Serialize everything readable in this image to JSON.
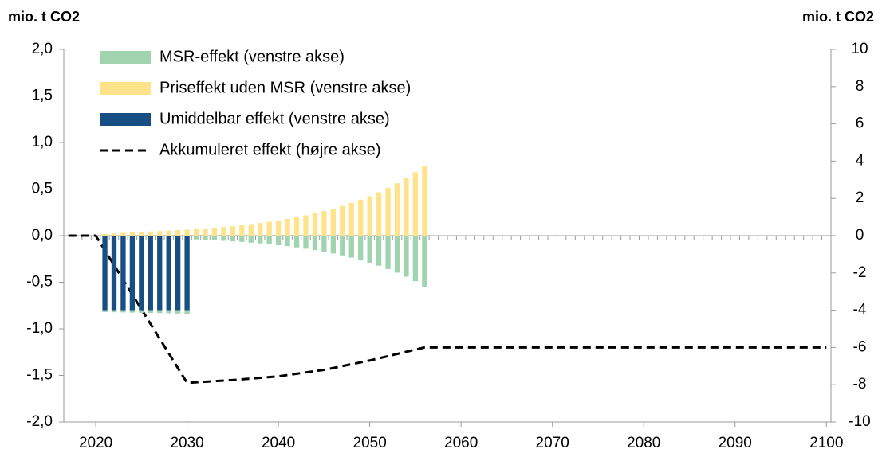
{
  "chart_data": {
    "type": "bar",
    "y_label": "mio. t CO2",
    "y2_label": "mio. t CO2",
    "legend": "upper left",
    "xlim": [
      2016.5,
      2100.5
    ],
    "xticks": [
      2020,
      2030,
      2040,
      2050,
      2060,
      2070,
      2080,
      2090,
      2100
    ],
    "ylim": [
      -2.0,
      2.0
    ],
    "yticks": [
      {
        "value": -2.0,
        "label": "-2,0"
      },
      {
        "value": -1.5,
        "label": "-1,5"
      },
      {
        "value": -1.0,
        "label": "-1,0"
      },
      {
        "value": -0.5,
        "label": "-0,5"
      },
      {
        "value": 0.0,
        "label": "0,0"
      },
      {
        "value": 0.5,
        "label": "0,5"
      },
      {
        "value": 1.0,
        "label": "1,0"
      },
      {
        "value": 1.5,
        "label": "1,5"
      },
      {
        "value": 2.0,
        "label": "2,0"
      }
    ],
    "y2lim": [
      -10,
      10
    ],
    "y2ticks": [
      -10,
      -8,
      -6,
      -4,
      -2,
      0,
      2,
      4,
      6,
      8,
      10
    ],
    "series": [
      {
        "name": "MSR-effekt (venstre akse)",
        "type": "bar",
        "color": "#9fd4ae",
        "x": [
          2021,
          2022,
          2023,
          2024,
          2025,
          2026,
          2027,
          2028,
          2029,
          2030,
          2031,
          2032,
          2033,
          2034,
          2035,
          2036,
          2037,
          2038,
          2039,
          2040,
          2041,
          2042,
          2043,
          2044,
          2045,
          2046,
          2047,
          2048,
          2049,
          2050,
          2051,
          2052,
          2053,
          2054,
          2055,
          2056
        ],
        "values": [
          -0.02,
          -0.022,
          -0.024,
          -0.026,
          -0.028,
          -0.03,
          -0.032,
          -0.034,
          -0.036,
          -0.04,
          -0.04,
          -0.044,
          -0.049,
          -0.055,
          -0.061,
          -0.067,
          -0.075,
          -0.083,
          -0.092,
          -0.102,
          -0.113,
          -0.126,
          -0.14,
          -0.155,
          -0.172,
          -0.191,
          -0.212,
          -0.236,
          -0.261,
          -0.29,
          -0.322,
          -0.358,
          -0.397,
          -0.441,
          -0.489,
          -0.55
        ]
      },
      {
        "name": "Priseffekt uden MSR (venstre akse)",
        "type": "bar",
        "color": "#ffe38a",
        "x": [
          2021,
          2022,
          2023,
          2024,
          2025,
          2026,
          2027,
          2028,
          2029,
          2030,
          2031,
          2032,
          2033,
          2034,
          2035,
          2036,
          2037,
          2038,
          2039,
          2040,
          2041,
          2042,
          2043,
          2044,
          2045,
          2046,
          2047,
          2048,
          2049,
          2050,
          2051,
          2052,
          2053,
          2054,
          2055,
          2056
        ],
        "values": [
          0.02,
          0.025,
          0.03,
          0.035,
          0.04,
          0.045,
          0.05,
          0.055,
          0.06,
          0.065,
          0.07,
          0.077,
          0.085,
          0.093,
          0.102,
          0.112,
          0.124,
          0.136,
          0.15,
          0.164,
          0.181,
          0.199,
          0.218,
          0.24,
          0.264,
          0.29,
          0.319,
          0.351,
          0.386,
          0.424,
          0.466,
          0.512,
          0.563,
          0.619,
          0.681,
          0.75
        ]
      },
      {
        "name": "Umiddelbar effekt (venstre akse)",
        "type": "bar",
        "color": "#174f85",
        "x": [
          2021,
          2022,
          2023,
          2024,
          2025,
          2026,
          2027,
          2028,
          2029,
          2030
        ],
        "values": [
          -0.8,
          -0.8,
          -0.8,
          -0.8,
          -0.8,
          -0.8,
          -0.8,
          -0.8,
          -0.8,
          -0.8
        ]
      },
      {
        "name": "Akkumuleret effekt (højre akse)",
        "type": "line",
        "axis": "y2",
        "color": "#000000",
        "dashed": true,
        "x": [
          2017,
          2020,
          2030,
          2035,
          2040,
          2045,
          2050,
          2056,
          2100
        ],
        "values": [
          0,
          0,
          -7.9,
          -7.75,
          -7.55,
          -7.2,
          -6.7,
          -6.0,
          -6.0
        ]
      }
    ]
  }
}
